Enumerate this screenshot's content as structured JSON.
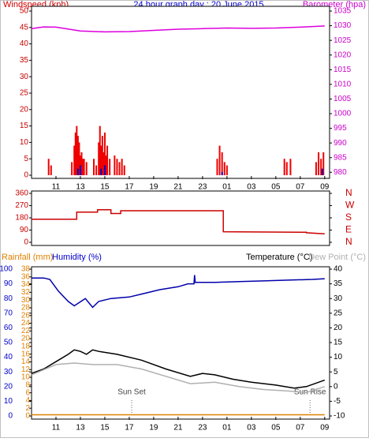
{
  "chart_data": [
    {
      "type": "line",
      "title": "24 hour graph day : 20 June 2015",
      "xlim": [
        0,
        24.4
      ],
      "xticks": [
        {
          "value": 2,
          "label": "11"
        },
        {
          "value": 4,
          "label": "13"
        },
        {
          "value": 6,
          "label": "15"
        },
        {
          "value": 8,
          "label": "17"
        },
        {
          "value": 10,
          "label": "19"
        },
        {
          "value": 12,
          "label": "21"
        },
        {
          "value": 14,
          "label": "23"
        },
        {
          "value": 16,
          "label": "01"
        },
        {
          "value": 18,
          "label": "03"
        },
        {
          "value": 20,
          "label": "05"
        },
        {
          "value": 22,
          "label": "07"
        },
        {
          "value": 24,
          "label": "09"
        }
      ],
      "ylim": [
        0,
        50
      ],
      "yticks": [
        0,
        5,
        10,
        15,
        20,
        25,
        30,
        35,
        40,
        45,
        50
      ],
      "ycolor": "#cc0000",
      "y2lim": [
        979,
        1035
      ],
      "y2ticks": [
        980,
        985,
        990,
        995,
        1000,
        1005,
        1010,
        1015,
        1020,
        1025,
        1030,
        1035
      ],
      "y2color": "#cc00cc",
      "series": [
        {
          "name": "Windspeed (kph)",
          "kind": "bars",
          "axis": "y",
          "color": "#ee0000",
          "x": [
            1.4,
            1.6,
            3.3,
            3.5,
            3.6,
            3.7,
            3.8,
            3.9,
            4.0,
            4.1,
            4.2,
            4.3,
            4.5,
            5.1,
            5.3,
            5.5,
            5.6,
            5.7,
            5.8,
            5.9,
            6.0,
            6.1,
            6.2,
            6.4,
            6.8,
            7.0,
            7.2,
            7.4,
            7.6,
            15.2,
            15.4,
            15.6,
            15.8,
            16.0,
            20.7,
            20.9,
            21.2,
            23.3,
            23.5,
            23.7,
            23.9
          ],
          "values": [
            5,
            3,
            4,
            9,
            13,
            15,
            12,
            10,
            6,
            7,
            5,
            5,
            4,
            5,
            3,
            10,
            15,
            9,
            12,
            7,
            13,
            6,
            9,
            5,
            6,
            5,
            4,
            5,
            3,
            5,
            9,
            7,
            4,
            3,
            5,
            4,
            5,
            4,
            7,
            5,
            7
          ]
        },
        {
          "kind": "bars",
          "axis": "y",
          "color": "#0000cc",
          "x": [
            3.8,
            4.0,
            5.7,
            6.0,
            15.6,
            23.8
          ],
          "values": [
            2,
            3,
            2,
            3,
            1,
            2
          ]
        },
        {
          "name": "Barometer (hpa)",
          "kind": "line",
          "axis": "y2",
          "color": "#dd00dd",
          "x": [
            0,
            1,
            2,
            4,
            6,
            8,
            10,
            12,
            14,
            16,
            18,
            20,
            22,
            24
          ],
          "values": [
            1029,
            1029.6,
            1029.5,
            1028.2,
            1027.9,
            1028,
            1028.4,
            1028.8,
            1029,
            1029.2,
            1029.1,
            1029.2,
            1029.5,
            1029.9
          ]
        }
      ]
    },
    {
      "type": "line",
      "xlim": [
        0,
        24.4
      ],
      "ylim": [
        0,
        360
      ],
      "yticks": [
        0,
        90,
        180,
        270,
        360
      ],
      "ycolor": "#cc0000",
      "y2lim": [
        0,
        360
      ],
      "y2ticks": [
        {
          "value": 0,
          "label": "N"
        },
        {
          "value": 90,
          "label": "E"
        },
        {
          "value": 180,
          "label": "S"
        },
        {
          "value": 270,
          "label": "W"
        },
        {
          "value": 360,
          "label": "N"
        }
      ],
      "y2color": "#cc0000",
      "series": [
        {
          "kind": "line",
          "axis": "y",
          "color": "#cc0000",
          "x": [
            0,
            3.7,
            3.7,
            5.4,
            5.4,
            6.5,
            6.5,
            7.3,
            7.3,
            15.7,
            15.7,
            22.5,
            22.5,
            24
          ],
          "values": [
            170,
            170,
            222,
            222,
            240,
            240,
            212,
            212,
            232,
            232,
            78,
            74,
            70,
            62
          ]
        }
      ]
    },
    {
      "type": "line",
      "xlim": [
        0,
        24.4
      ],
      "xticks": [
        {
          "value": 2,
          "label": "11"
        },
        {
          "value": 4,
          "label": "13"
        },
        {
          "value": 6,
          "label": "15"
        },
        {
          "value": 8,
          "label": "17"
        },
        {
          "value": 10,
          "label": "19"
        },
        {
          "value": 12,
          "label": "21"
        },
        {
          "value": 14,
          "label": "23"
        },
        {
          "value": 16,
          "label": "01"
        },
        {
          "value": 18,
          "label": "03"
        },
        {
          "value": 20,
          "label": "05"
        },
        {
          "value": 22,
          "label": "07"
        },
        {
          "value": 24,
          "label": "09"
        }
      ],
      "ylim": [
        0,
        38
      ],
      "yticks": [
        0,
        2,
        4,
        6,
        8,
        10,
        12,
        14,
        16,
        18,
        20,
        22,
        24,
        26,
        28,
        30,
        32,
        34,
        36,
        38
      ],
      "ycolor": "#e08000",
      "y3lim": [
        0,
        100
      ],
      "y3ticks": [
        0,
        10,
        20,
        30,
        40,
        50,
        60,
        70,
        80,
        90,
        100
      ],
      "y3color": "#0000cc",
      "y2lim": [
        -10,
        40
      ],
      "y2ticks": [
        -10,
        -5,
        0,
        5,
        10,
        15,
        20,
        25,
        30,
        35,
        40
      ],
      "y2color": "#000000",
      "annotations": [
        {
          "text": "Sun Set",
          "x": 8.2
        },
        {
          "text": "Sun Rise",
          "x": 22.8
        }
      ],
      "series": [
        {
          "name": "Rainfall (mm)",
          "kind": "line",
          "axis": "y",
          "color": "#e08000",
          "x": [
            0,
            24
          ],
          "values": [
            0.3,
            0.3
          ]
        },
        {
          "name": "Humidity (%)",
          "kind": "line",
          "axis": "y3",
          "color": "#0000aa",
          "x": [
            0,
            1,
            1.5,
            2.2,
            3,
            3.5,
            4.4,
            5,
            5.5,
            6.5,
            8,
            9,
            10.5,
            12,
            12.8,
            13.3,
            13.35,
            13.4,
            15,
            17,
            19,
            21,
            23,
            24
          ],
          "values": [
            94,
            94,
            93,
            85,
            78,
            75,
            80,
            74,
            78,
            80,
            81,
            83,
            86,
            88,
            90,
            90,
            96,
            91,
            91,
            91.5,
            92,
            92.5,
            93,
            93.5
          ]
        },
        {
          "name": "Temperature (°C)",
          "kind": "line",
          "axis": "y2",
          "color": "#000000",
          "x": [
            0,
            1,
            2,
            3,
            3.5,
            4,
            4.5,
            5,
            5.5,
            7,
            9,
            11,
            13,
            14,
            15,
            16.5,
            18,
            20,
            21.5,
            22.5,
            24
          ],
          "values": [
            4.5,
            6,
            8.5,
            11,
            12.5,
            12,
            11,
            12.5,
            12,
            11,
            9,
            6,
            3.5,
            4.5,
            4,
            2.5,
            1.5,
            0.5,
            -0.5,
            0,
            2.2
          ]
        },
        {
          "name": "Dew Point (°C)",
          "kind": "line",
          "axis": "y2",
          "color": "#b0b0b0",
          "x": [
            0,
            2,
            3.5,
            5,
            7,
            9,
            11,
            13,
            15,
            17,
            19,
            21,
            22.5,
            24
          ],
          "values": [
            4,
            7.5,
            8,
            7.5,
            7.5,
            6,
            3.5,
            1,
            1.5,
            0,
            -1,
            -1.5,
            -2,
            0
          ]
        }
      ]
    }
  ]
}
